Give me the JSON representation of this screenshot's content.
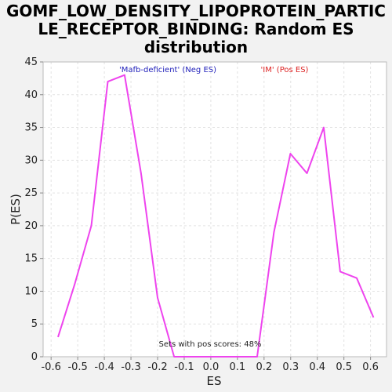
{
  "chart_data": {
    "type": "line",
    "title_lines": [
      "GOMF_LOW_DENSITY_LIPOPROTEIN_PARTIC",
      "LE_RECEPTOR_BINDING: Random ES",
      "distribution"
    ],
    "xlabel": "ES",
    "ylabel": "P(ES)",
    "xlim": [
      -0.63,
      0.66
    ],
    "ylim": [
      0,
      45
    ],
    "x_ticks": [
      -0.6,
      -0.5,
      -0.4,
      -0.3,
      -0.2,
      -0.1,
      0.0,
      0.1,
      0.2,
      0.3,
      0.4,
      0.5,
      0.6
    ],
    "x_tick_labels": [
      "-0.6",
      "-0.5",
      "-0.4",
      "-0.3",
      "-0.2",
      "-0.1",
      "0.0",
      "0.1",
      "0.2",
      "0.3",
      "0.4",
      "0.5",
      "0.6"
    ],
    "y_ticks": [
      0,
      5,
      10,
      15,
      20,
      25,
      30,
      35,
      40,
      45
    ],
    "y_tick_labels": [
      "0",
      "5",
      "10",
      "15",
      "20",
      "25",
      "30",
      "35",
      "40",
      "45"
    ],
    "grid": true,
    "series": [
      {
        "color": "#ee44ee",
        "x": [
          -0.574,
          -0.512,
          -0.449,
          -0.387,
          -0.324,
          -0.262,
          -0.2,
          -0.138,
          -0.075,
          -0.013,
          0.05,
          0.112,
          0.174,
          0.237,
          0.299,
          0.361,
          0.424,
          0.486,
          0.548,
          0.611
        ],
        "y": [
          3,
          11,
          20,
          42,
          43,
          28,
          9,
          0,
          0,
          0,
          0,
          0,
          0,
          19,
          31,
          28,
          35,
          13,
          12,
          6
        ]
      }
    ],
    "legend": [
      {
        "label": "'Mafb-deficient' (Neg ES)",
        "color": "#2222bb"
      },
      {
        "label": "'IM' (Pos ES)",
        "color": "#dd2222"
      }
    ],
    "annotation": "Sets with pos scores: 48%"
  }
}
